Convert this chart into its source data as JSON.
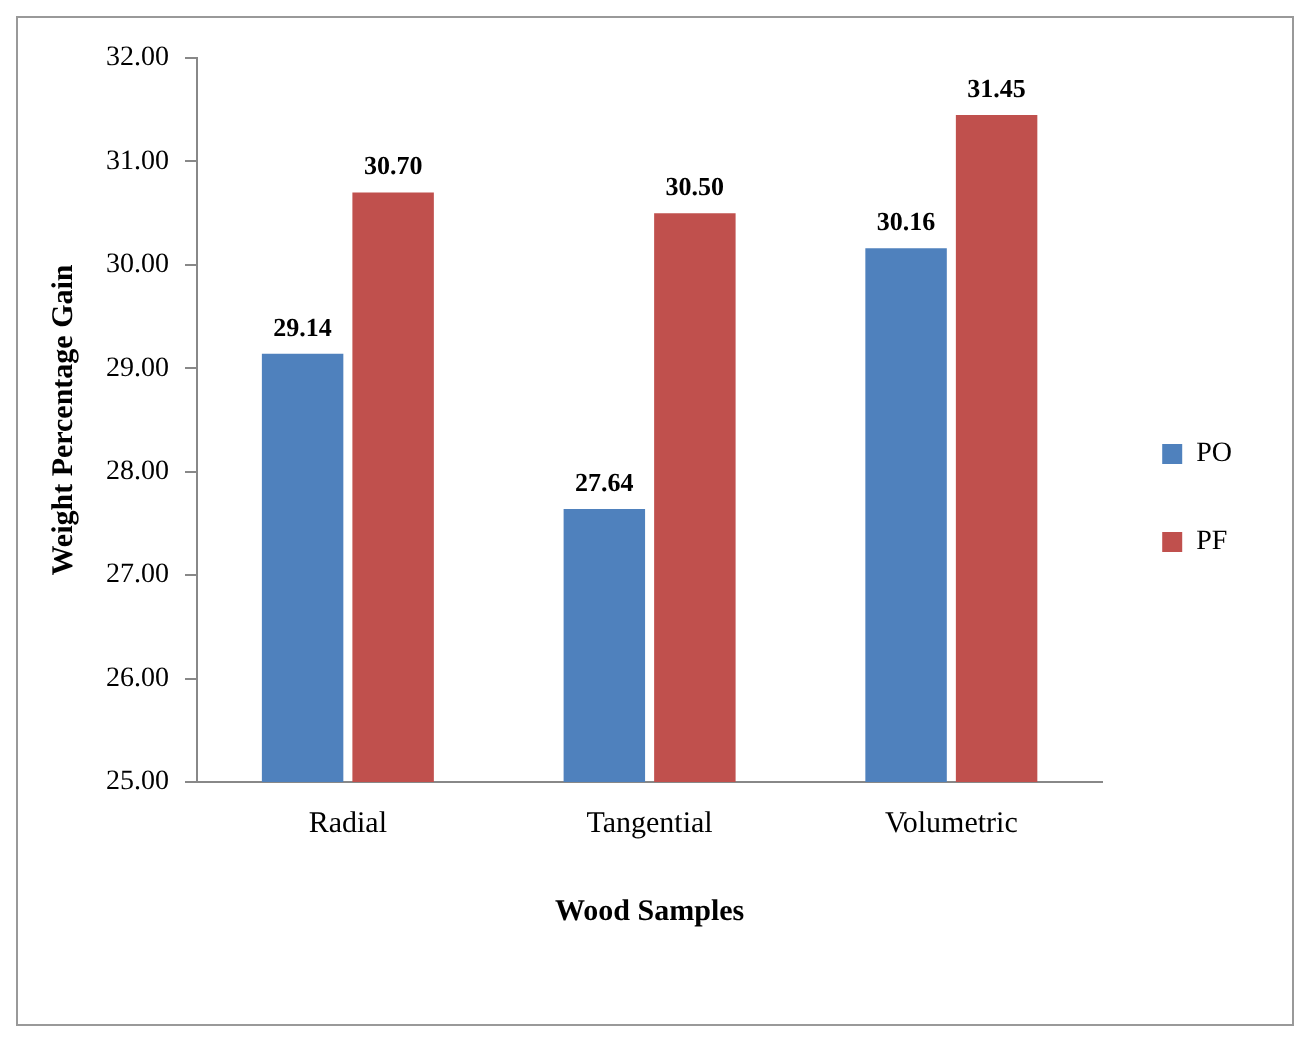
{
  "chart_data": {
    "type": "bar",
    "xlabel": "Wood Samples",
    "ylabel": "Weight Percentage Gain",
    "categories": [
      "Radial",
      "Tangential",
      "Volumetric"
    ],
    "series": [
      {
        "name": "PO",
        "color": "#4f81bd",
        "values": [
          29.14,
          27.64,
          30.16
        ],
        "value_labels": [
          "29.14",
          "27.64",
          "30.16"
        ]
      },
      {
        "name": "PF",
        "color": "#c0504d",
        "values": [
          30.7,
          30.5,
          31.45
        ],
        "value_labels": [
          "30.70",
          "30.50",
          "31.45"
        ]
      }
    ],
    "ylim": [
      25,
      32
    ],
    "yticks": [
      {
        "value": 25,
        "label": "25.00"
      },
      {
        "value": 26,
        "label": "26.00"
      },
      {
        "value": 27,
        "label": "27.00"
      },
      {
        "value": 28,
        "label": "28.00"
      },
      {
        "value": 29,
        "label": "29.00"
      },
      {
        "value": 30,
        "label": "30.00"
      },
      {
        "value": 31,
        "label": "31.00"
      },
      {
        "value": 32,
        "label": "32.00"
      }
    ],
    "grid": false,
    "legend": "right"
  }
}
